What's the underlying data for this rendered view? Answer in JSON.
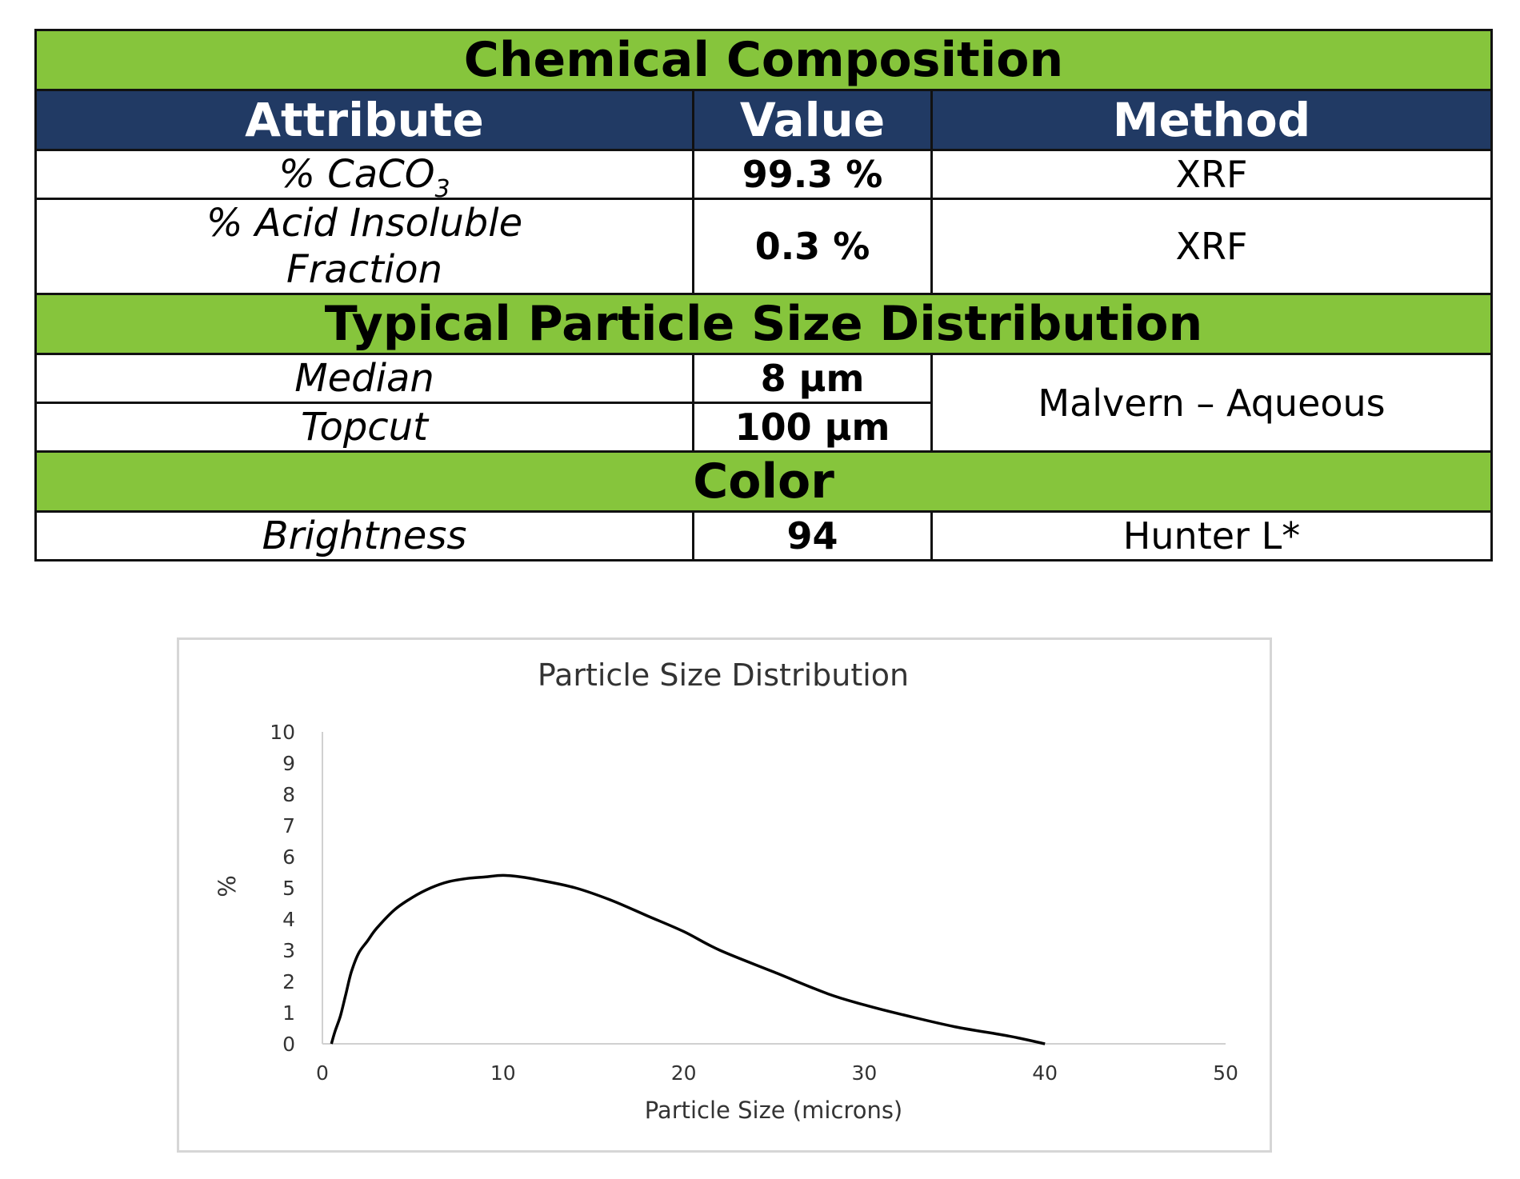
{
  "table": {
    "chemical_title": "Chemical Composition",
    "headers": {
      "attribute": "Attribute",
      "value": "Value",
      "method": "Method"
    },
    "rows_chem": [
      {
        "attribute": "% CaCO",
        "attribute_sub": "3",
        "value": "99.3 %",
        "method": "XRF"
      },
      {
        "attribute_line1": "% Acid Insoluble",
        "attribute_line2": "Fraction",
        "value": "0.3 %",
        "method": "XRF"
      }
    ],
    "psd_title": "Typical Particle Size Distribution",
    "rows_psd": [
      {
        "attribute": "Median",
        "value": "8 µm"
      },
      {
        "attribute": "Topcut",
        "value": "100 µm"
      }
    ],
    "psd_method": "Malvern – Aqueous",
    "color_title": "Color",
    "rows_color": [
      {
        "attribute": "Brightness",
        "value": "94",
        "method": "Hunter L*"
      }
    ]
  },
  "chart_data": {
    "type": "line",
    "title": "Particle Size Distribution",
    "xlabel": "Particle Size (microns)",
    "ylabel": "%",
    "xlim": [
      0,
      50
    ],
    "ylim": [
      0,
      10
    ],
    "x_ticks": [
      0,
      10,
      20,
      30,
      40,
      50
    ],
    "y_ticks": [
      0,
      1,
      2,
      3,
      4,
      5,
      6,
      7,
      8,
      9,
      10
    ],
    "grid": false,
    "series": [
      {
        "color": "#000000",
        "x": [
          0.5,
          0.7,
          1.0,
          1.3,
          1.6,
          2.0,
          2.5,
          3.0,
          4.0,
          5.0,
          6.0,
          7.0,
          8.0,
          9.0,
          10.0,
          11.0,
          12.0,
          14.0,
          16.0,
          18.0,
          20.0,
          22.0,
          25.0,
          28.0,
          30.0,
          32.0,
          35.0,
          38.0,
          40.0
        ],
        "y": [
          0.0,
          0.4,
          0.9,
          1.6,
          2.3,
          2.9,
          3.3,
          3.7,
          4.3,
          4.7,
          5.0,
          5.2,
          5.3,
          5.35,
          5.4,
          5.35,
          5.25,
          5.0,
          4.6,
          4.1,
          3.6,
          3.0,
          2.3,
          1.6,
          1.25,
          0.95,
          0.55,
          0.25,
          0.0
        ]
      }
    ]
  }
}
